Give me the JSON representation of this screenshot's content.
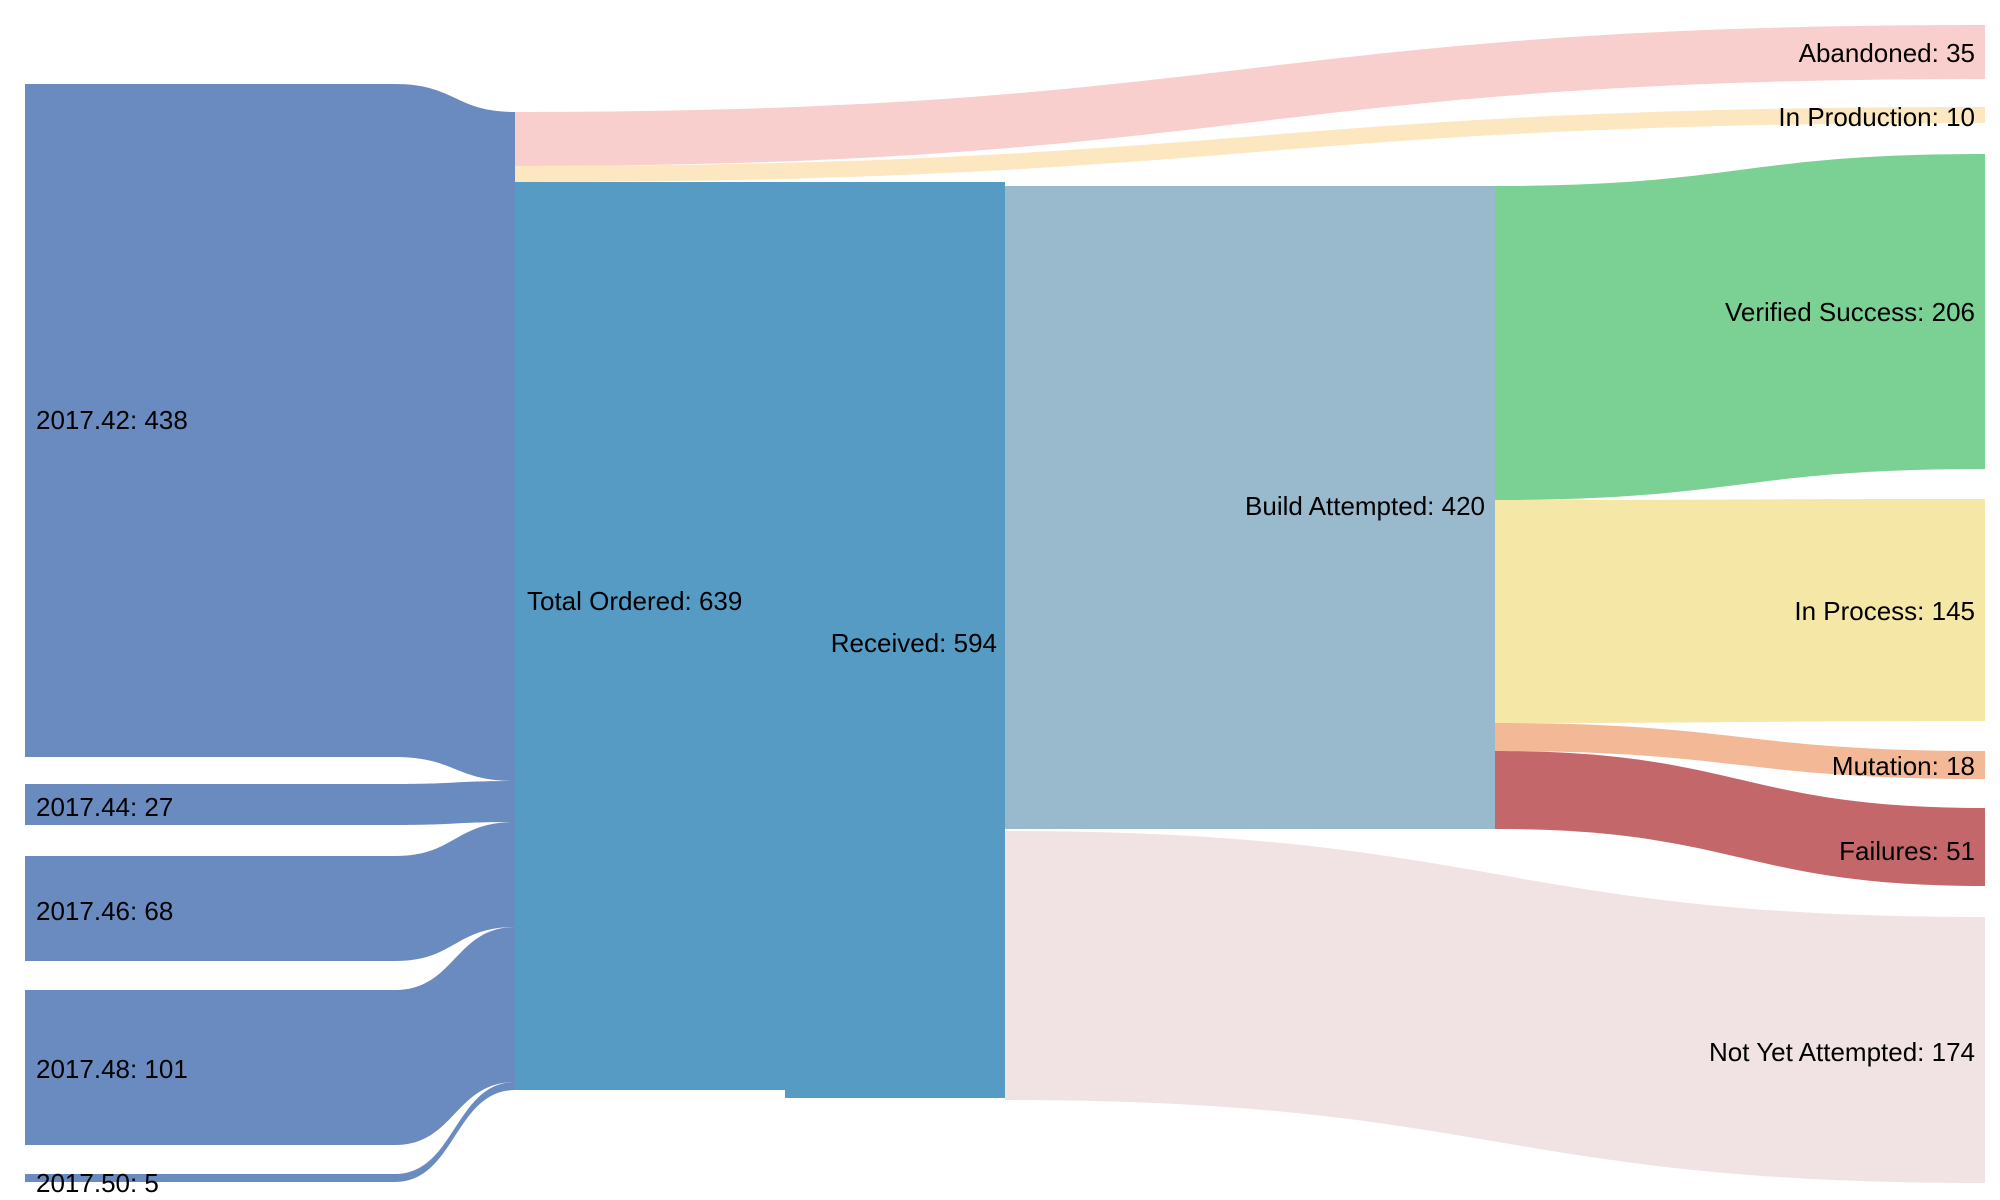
{
  "chart_data": {
    "type": "sankey",
    "nodes": [
      {
        "id": "w42",
        "label": "2017.42: 438",
        "color": "#6a8bbf"
      },
      {
        "id": "w44",
        "label": "2017.44: 27",
        "color": "#6a8bbf"
      },
      {
        "id": "w46",
        "label": "2017.46: 68",
        "color": "#6a8bbf"
      },
      {
        "id": "w48",
        "label": "2017.48: 101",
        "color": "#6a8bbf"
      },
      {
        "id": "w50",
        "label": "2017.50: 5",
        "color": "#6a8bbf"
      },
      {
        "id": "total",
        "label": "Total Ordered: 639",
        "color": "#569bc3"
      },
      {
        "id": "received",
        "label": "Received: 594",
        "color": "#569bc3"
      },
      {
        "id": "abandoned",
        "label": "Abandoned: 35",
        "color": "#f8cfcc"
      },
      {
        "id": "inproduction",
        "label": "In Production: 10",
        "color": "#fce7c0"
      },
      {
        "id": "build",
        "label": "Build Attempted: 420",
        "color": "#99b9cc"
      },
      {
        "id": "notyet",
        "label": "Not Yet Attempted: 174",
        "color": "#f1e2e3"
      },
      {
        "id": "verified",
        "label": "Verified Success: 206",
        "color": "#7bd093"
      },
      {
        "id": "inprocess",
        "label": "In Process: 145",
        "color": "#f5e7a6"
      },
      {
        "id": "mutation",
        "label": "Mutation: 18",
        "color": "#f3b896"
      },
      {
        "id": "failures",
        "label": "Failures: 51",
        "color": "#c4676b"
      }
    ],
    "links": [
      {
        "source": "w42",
        "target": "total",
        "value": 438
      },
      {
        "source": "w44",
        "target": "total",
        "value": 27
      },
      {
        "source": "w46",
        "target": "total",
        "value": 68
      },
      {
        "source": "w48",
        "target": "total",
        "value": 101
      },
      {
        "source": "w50",
        "target": "total",
        "value": 5
      },
      {
        "source": "total",
        "target": "abandoned",
        "value": 35
      },
      {
        "source": "total",
        "target": "inproduction",
        "value": 10
      },
      {
        "source": "total",
        "target": "received",
        "value": 594
      },
      {
        "source": "received",
        "target": "build",
        "value": 420
      },
      {
        "source": "received",
        "target": "notyet",
        "value": 174
      },
      {
        "source": "build",
        "target": "verified",
        "value": 206
      },
      {
        "source": "build",
        "target": "inprocess",
        "value": 145
      },
      {
        "source": "build",
        "target": "mutation",
        "value": 18
      },
      {
        "source": "build",
        "target": "failures",
        "value": 51
      }
    ]
  }
}
